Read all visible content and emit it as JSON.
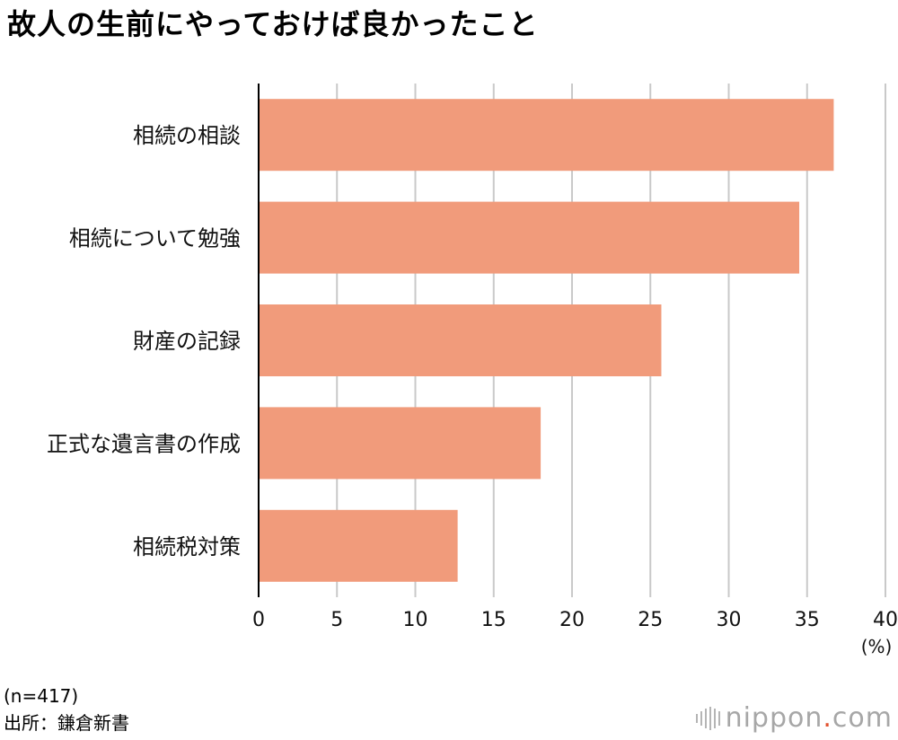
{
  "title": "故人の生前にやっておけば良かったこと",
  "chart_data": {
    "type": "bar",
    "orientation": "horizontal",
    "categories": [
      "相続の相談",
      "相続について勉強",
      "財産の記録",
      "正式な遺言書の作成",
      "相続税対策"
    ],
    "values": [
      36.7,
      34.5,
      25.7,
      18.0,
      12.7
    ],
    "xlim": [
      0,
      40
    ],
    "xticks": [
      "0",
      "5",
      "10",
      "15",
      "20",
      "25",
      "30",
      "35",
      "40"
    ],
    "xlabel": "(%)",
    "grid": true,
    "bar_color": "#f19b7b",
    "grid_color": "#c9c9c9"
  },
  "footer": {
    "sample": "(n=417)",
    "source": "出所：鎌倉新書"
  },
  "brand": {
    "name": "nippon",
    "dot": ".",
    "tld": "com",
    "accent": "#e2522f"
  }
}
